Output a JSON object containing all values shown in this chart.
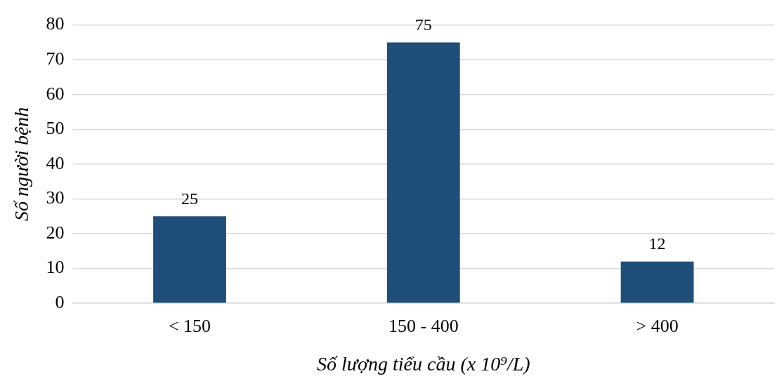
{
  "chart_data": {
    "type": "bar",
    "xlabel": "Số lượng tiểu cầu (x 10⁹/L)",
    "ylabel": "Số người bệnh",
    "categories": [
      "< 150",
      "150 - 400",
      "> 400"
    ],
    "values": [
      25,
      75,
      12
    ],
    "color": "#1f4e79",
    "ylim": [
      0,
      80
    ],
    "yticks": [
      0,
      10,
      20,
      30,
      40,
      50,
      60,
      70,
      80
    ],
    "grid": "y",
    "data_labels": true
  }
}
